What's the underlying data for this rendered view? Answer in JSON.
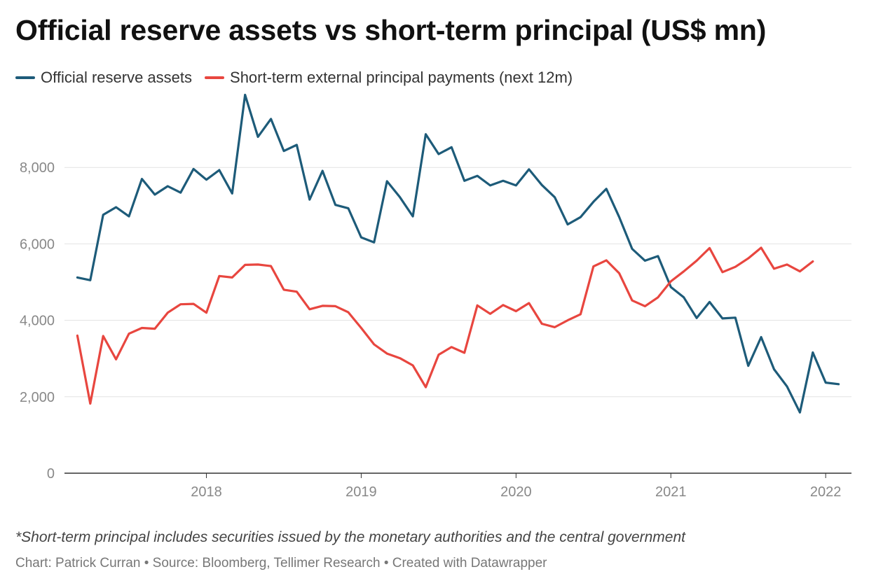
{
  "title": "Official reserve assets vs short-term principal (US$ mn)",
  "note": "*Short-term principal includes securities issued by the monetary authorities and the central government",
  "credit": "Chart: Patrick Curran • Source: Bloomberg, Tellimer Research • Created with Datawrapper",
  "chart_data": {
    "type": "line",
    "title": "Official reserve assets vs short-term principal (US$ mn)",
    "xlabel": "",
    "ylabel": "",
    "ylim": [
      0,
      10000
    ],
    "xlim": [
      "2017-02",
      "2022-03"
    ],
    "yticks": [
      0,
      2000,
      4000,
      6000,
      8000
    ],
    "ytick_labels": [
      "0",
      "2,000",
      "4,000",
      "6,000",
      "8,000"
    ],
    "xticks": [
      "2018",
      "2019",
      "2020",
      "2021",
      "2022"
    ],
    "grid": "horizontal",
    "legend_position": "top-left",
    "x": [
      "2017-03",
      "2017-04",
      "2017-05",
      "2017-06",
      "2017-07",
      "2017-08",
      "2017-09",
      "2017-10",
      "2017-11",
      "2017-12",
      "2018-01",
      "2018-02",
      "2018-03",
      "2018-04",
      "2018-05",
      "2018-06",
      "2018-07",
      "2018-08",
      "2018-09",
      "2018-10",
      "2018-11",
      "2018-12",
      "2019-01",
      "2019-02",
      "2019-03",
      "2019-04",
      "2019-05",
      "2019-06",
      "2019-07",
      "2019-08",
      "2019-09",
      "2019-10",
      "2019-11",
      "2019-12",
      "2020-01",
      "2020-02",
      "2020-03",
      "2020-04",
      "2020-05",
      "2020-06",
      "2020-07",
      "2020-08",
      "2020-09",
      "2020-10",
      "2020-11",
      "2020-12",
      "2021-01",
      "2021-02",
      "2021-03",
      "2021-04",
      "2021-05",
      "2021-06",
      "2021-07",
      "2021-08",
      "2021-09",
      "2021-10",
      "2021-11",
      "2021-12",
      "2022-01",
      "2022-02"
    ],
    "series": [
      {
        "name": "Official reserve assets",
        "color": "#1d5b79",
        "values": [
          5120,
          5050,
          6760,
          6960,
          6720,
          7700,
          7290,
          7510,
          7340,
          7960,
          7680,
          7930,
          7320,
          9900,
          8800,
          9270,
          8430,
          8590,
          7160,
          7910,
          7020,
          6930,
          6170,
          6040,
          7640,
          7220,
          6720,
          8870,
          8350,
          8530,
          7650,
          7780,
          7530,
          7650,
          7530,
          7950,
          7540,
          7220,
          6510,
          6700,
          7100,
          7440,
          6700,
          5870,
          5560,
          5680,
          4870,
          4600,
          4060,
          4480,
          4050,
          4070,
          2810,
          3560,
          2720,
          2270,
          1590,
          3160,
          2370,
          2330
        ]
      },
      {
        "name": "Short-term external principal payments (next 12m)",
        "color": "#e8463f",
        "values": [
          3600,
          1820,
          3590,
          2980,
          3650,
          3800,
          3780,
          4200,
          4420,
          4430,
          4200,
          5160,
          5120,
          5450,
          5460,
          5420,
          4800,
          4750,
          4290,
          4380,
          4370,
          4210,
          3800,
          3370,
          3130,
          3010,
          2820,
          2250,
          3100,
          3300,
          3150,
          4390,
          4170,
          4400,
          4240,
          4450,
          3910,
          3820,
          4000,
          4160,
          5410,
          5570,
          5230,
          4520,
          4370,
          4600,
          5020,
          5280,
          5560,
          5890,
          5260,
          5400,
          5620,
          5900,
          5350,
          5460,
          5280,
          5540,
          null,
          null
        ]
      }
    ]
  }
}
